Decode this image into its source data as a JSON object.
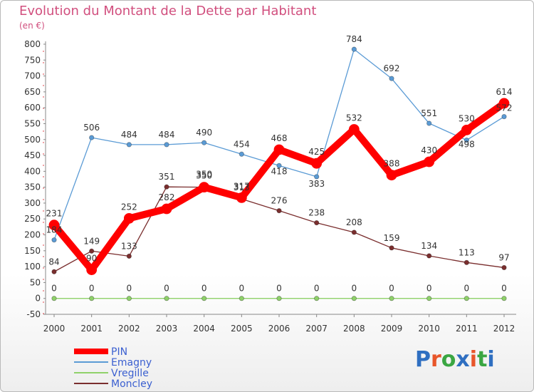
{
  "title": "Evolution du Montant de la Dette par Habitant",
  "subtitle": "(en €)",
  "logo": {
    "text": "Proxiti",
    "letter_colors": [
      "#2f6fc1",
      "#e8562a",
      "#3aa642",
      "#2f6fc1",
      "#e8562a",
      "#3aa642",
      "#2f6fc1"
    ]
  },
  "chart_data": {
    "type": "line",
    "x": [
      "2000",
      "2001",
      "2002",
      "2003",
      "2004",
      "2005",
      "2006",
      "2007",
      "2008",
      "2009",
      "2010",
      "2011",
      "2012"
    ],
    "ylim": [
      -50,
      800
    ],
    "yticks": [
      -50,
      0,
      50,
      100,
      150,
      200,
      250,
      300,
      350,
      400,
      450,
      500,
      550,
      600,
      650,
      700,
      750,
      800
    ],
    "grid": false,
    "legend_position": "bottom-left",
    "series": [
      {
        "name": "PIN",
        "color": "#ff0000",
        "values": [
          231,
          90,
          252,
          282,
          350,
          317,
          468,
          425,
          532,
          388,
          430,
          530,
          614
        ]
      },
      {
        "name": "Emagny",
        "color": "#5b9bd5",
        "values": [
          184,
          506,
          484,
          484,
          490,
          454,
          418,
          383,
          784,
          692,
          551,
          498,
          572
        ]
      },
      {
        "name": "Vregille",
        "color": "#8fd16a",
        "values": [
          0,
          0,
          0,
          0,
          0,
          0,
          0,
          0,
          0,
          0,
          0,
          0,
          0
        ]
      },
      {
        "name": "Moncley",
        "color": "#7a2e2e",
        "values": [
          84,
          149,
          133,
          351,
          350,
          313,
          276,
          238,
          208,
          159,
          134,
          113,
          97
        ]
      }
    ],
    "labels": [
      [
        "231",
        "90",
        "252",
        "282",
        "350",
        "317",
        "468",
        "425",
        "532",
        "388",
        "430",
        "530",
        "614"
      ],
      [
        "184",
        "506",
        "484",
        "484",
        "490",
        "454",
        "418",
        "383",
        "784",
        "692",
        "551",
        "498",
        "572"
      ],
      [
        "0",
        "0",
        "0",
        "0",
        "0",
        "0",
        "0",
        "0",
        "0",
        "0",
        "0",
        "0",
        "0"
      ],
      [
        "84",
        "149",
        "133",
        "351",
        "350",
        "313",
        "276",
        "238",
        "208",
        "159",
        "134",
        "113",
        "97"
      ]
    ]
  }
}
